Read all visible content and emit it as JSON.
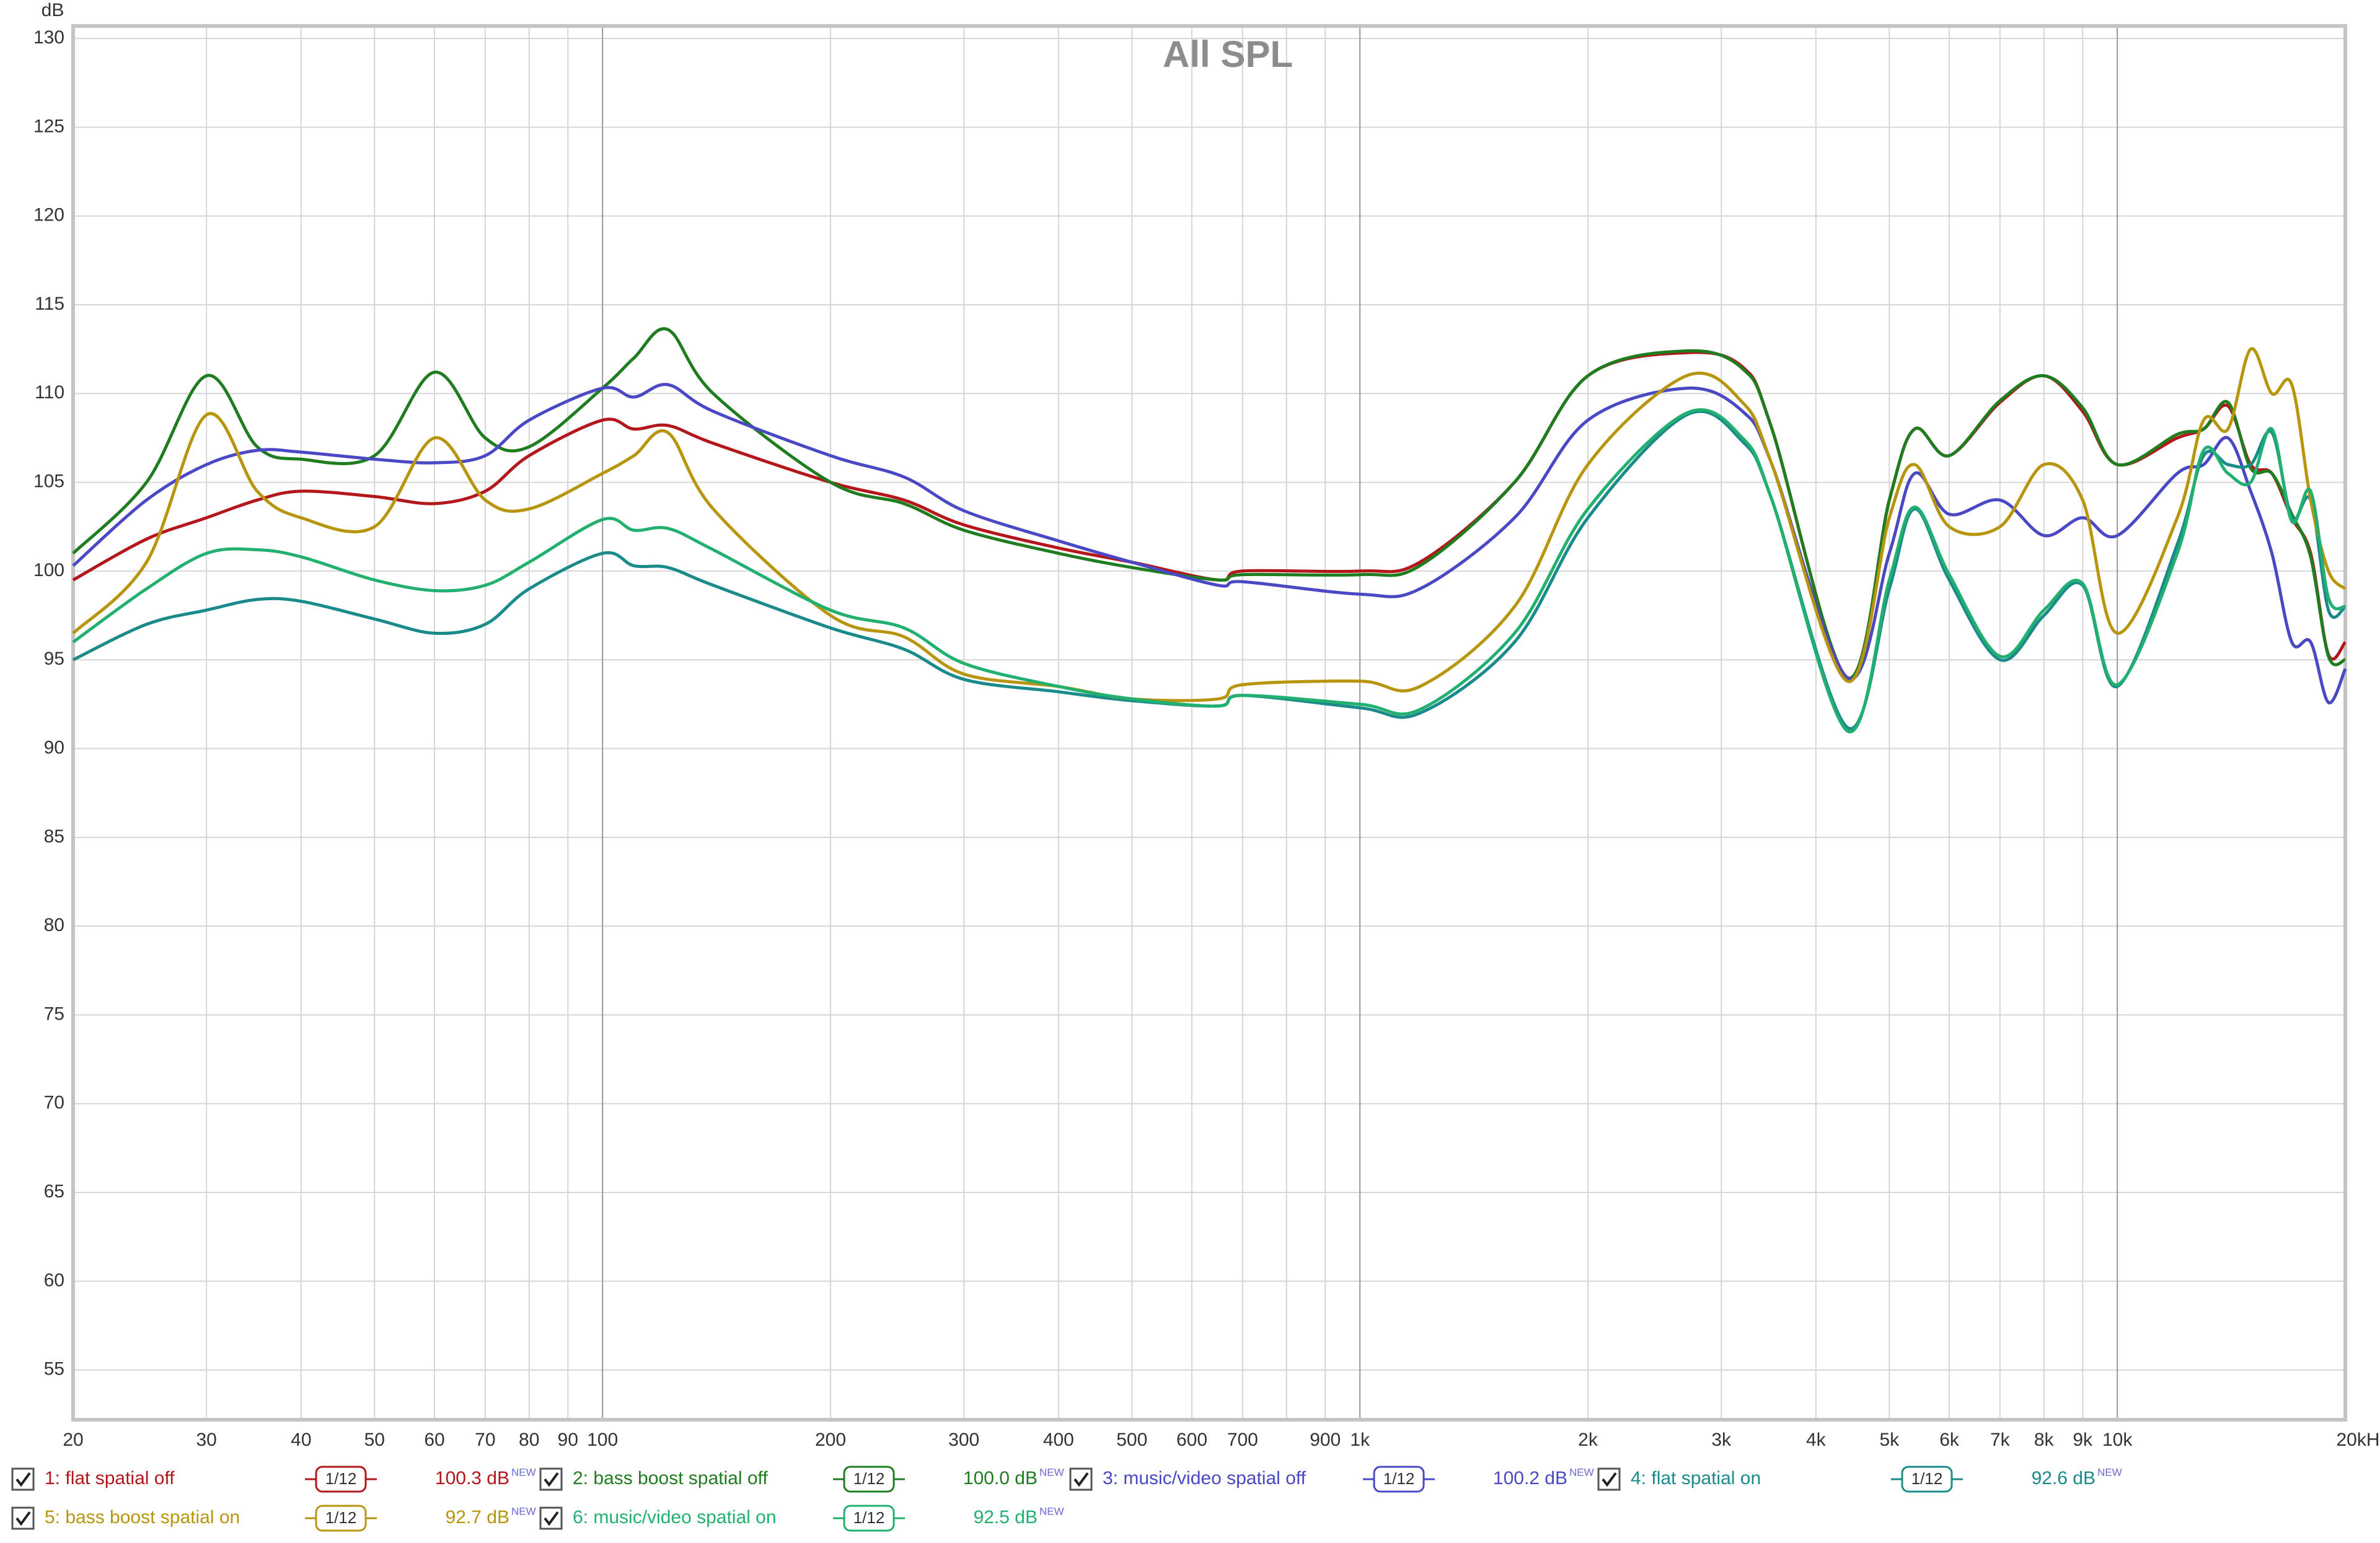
{
  "chart_data": {
    "type": "line",
    "title": "All SPL",
    "y_label": "dB",
    "x": [
      20,
      25,
      30,
      35,
      40,
      50,
      60,
      70,
      80,
      100,
      110,
      122,
      140,
      200,
      250,
      300,
      400,
      500,
      650,
      700,
      1000,
      1200,
      1600,
      2000,
      2700,
      3200,
      3500,
      4400,
      5000,
      5400,
      6000,
      7000,
      8000,
      9000,
      10000,
      12000,
      13000,
      14000,
      15000,
      16000,
      17000,
      18000,
      19000,
      20000
    ],
    "xscale": "log",
    "xlim": [
      20,
      20000
    ],
    "ylim": [
      52.2,
      130.7
    ],
    "xticks": [
      20,
      30,
      40,
      50,
      60,
      70,
      80,
      90,
      100,
      200,
      300,
      400,
      500,
      600,
      700,
      900,
      {
        "value": 1000,
        "label": "1k"
      },
      {
        "value": 2000,
        "label": "2k"
      },
      {
        "value": 3000,
        "label": "3k"
      },
      {
        "value": 4000,
        "label": "4k"
      },
      {
        "value": 5000,
        "label": "5k"
      },
      {
        "value": 6000,
        "label": "6k"
      },
      {
        "value": 7000,
        "label": "7k"
      },
      {
        "value": 8000,
        "label": "8k"
      },
      {
        "value": 9000,
        "label": "9k"
      },
      {
        "value": 10000,
        "label": "10k"
      },
      {
        "value": 20000,
        "label": "20kHz"
      }
    ],
    "minor_xticks": [
      800
    ],
    "yticks": [
      55,
      60,
      65,
      70,
      75,
      80,
      85,
      90,
      95,
      100,
      105,
      110,
      115,
      120,
      125,
      130
    ],
    "grid": true,
    "level_badge": "NEW",
    "series": [
      {
        "name": "1: flat spatial off",
        "color": "#b3161b",
        "smoothing": "1/12",
        "level": "100.3 dB",
        "values": [
          99.5,
          101.8,
          103,
          104,
          104.5,
          104.2,
          103.8,
          104.5,
          106.5,
          108.5,
          108.0,
          108.2,
          107.2,
          105,
          104,
          102.6,
          101.3,
          100.5,
          99.5,
          100,
          100,
          100.5,
          105,
          111,
          112.3,
          111.5,
          108,
          94,
          104,
          108,
          106.5,
          109.5,
          111,
          109,
          106,
          107.5,
          108,
          109.3,
          106,
          105.5,
          103,
          101,
          95.3,
          96
        ]
      },
      {
        "name": "2: bass boost spatial off",
        "color": "#1f7d1f",
        "smoothing": "1/12",
        "level": "100.0 dB",
        "values": [
          101,
          105,
          111,
          107,
          106.3,
          106.5,
          111.2,
          107.5,
          107,
          110.3,
          112,
          113.6,
          110,
          105,
          103.8,
          102.3,
          101,
          100.2,
          99.5,
          99.8,
          99.8,
          100.3,
          105,
          111,
          112.4,
          111.4,
          108,
          94,
          104,
          108,
          106.5,
          109.6,
          111,
          109.2,
          106,
          107.7,
          108,
          109.5,
          105.8,
          105.5,
          103.2,
          100.8,
          95.2,
          95
        ]
      },
      {
        "name": "3: music/video spatial off",
        "color": "#4a48c4",
        "smoothing": "1/12",
        "level": "100.2 dB",
        "values": [
          100.3,
          104,
          106,
          106.8,
          106.7,
          106.3,
          106.1,
          106.5,
          108.5,
          110.3,
          109.8,
          110.5,
          109,
          106.5,
          105.3,
          103.4,
          101.7,
          100.5,
          99.2,
          99.4,
          98.7,
          99,
          103,
          108.5,
          110.3,
          109,
          106,
          94,
          101,
          105.5,
          103.2,
          104,
          102,
          103,
          102,
          105.5,
          106,
          107.5,
          104.5,
          101,
          96,
          96,
          92.6,
          94.5
        ]
      },
      {
        "name": "4: flat spatial on",
        "color": "#1a8a8a",
        "smoothing": "1/12",
        "level": "92.6 dB",
        "values": [
          95,
          97,
          97.8,
          98.4,
          98.3,
          97.3,
          96.5,
          97,
          99,
          101,
          100.3,
          100.2,
          99.2,
          96.8,
          95.6,
          93.9,
          93.2,
          92.7,
          92.4,
          93,
          92.3,
          92,
          96,
          103,
          108.8,
          107.3,
          104,
          91.2,
          99,
          103.5,
          99.5,
          95,
          97.5,
          99.2,
          93.5,
          101.5,
          106.5,
          106,
          106,
          107.8,
          103,
          104,
          97.8,
          98
        ]
      },
      {
        "name": "5: bass boost spatial on",
        "color": "#b8950e",
        "smoothing": "1/12",
        "level": "92.7 dB",
        "values": [
          96.5,
          100.5,
          108.8,
          104.5,
          103,
          102.5,
          107.5,
          104,
          103.5,
          105.5,
          106.5,
          107.8,
          103.5,
          97.5,
          96.3,
          94.2,
          93.5,
          92.8,
          92.8,
          93.6,
          93.8,
          93.5,
          98,
          106,
          111,
          109.5,
          106,
          93.8,
          103,
          106,
          102.5,
          102.5,
          106,
          104,
          96.5,
          103,
          108.5,
          108,
          112.5,
          110,
          110.5,
          104,
          100,
          99
        ]
      },
      {
        "name": "6: music/video spatial on",
        "color": "#22b070",
        "smoothing": "1/12",
        "level": "92.5 dB",
        "values": [
          96,
          99,
          101,
          101.2,
          100.8,
          99.5,
          98.9,
          99.2,
          100.5,
          102.9,
          102.3,
          102.4,
          101.2,
          97.8,
          96.8,
          94.8,
          93.5,
          92.8,
          92.4,
          93,
          92.5,
          92.2,
          96.5,
          103.5,
          108.9,
          107.5,
          104,
          91,
          99.5,
          103.6,
          99.8,
          95.2,
          97.8,
          99.3,
          93.6,
          101,
          106.8,
          105.5,
          105,
          108,
          102.8,
          104.5,
          98.5,
          98
        ]
      }
    ]
  }
}
